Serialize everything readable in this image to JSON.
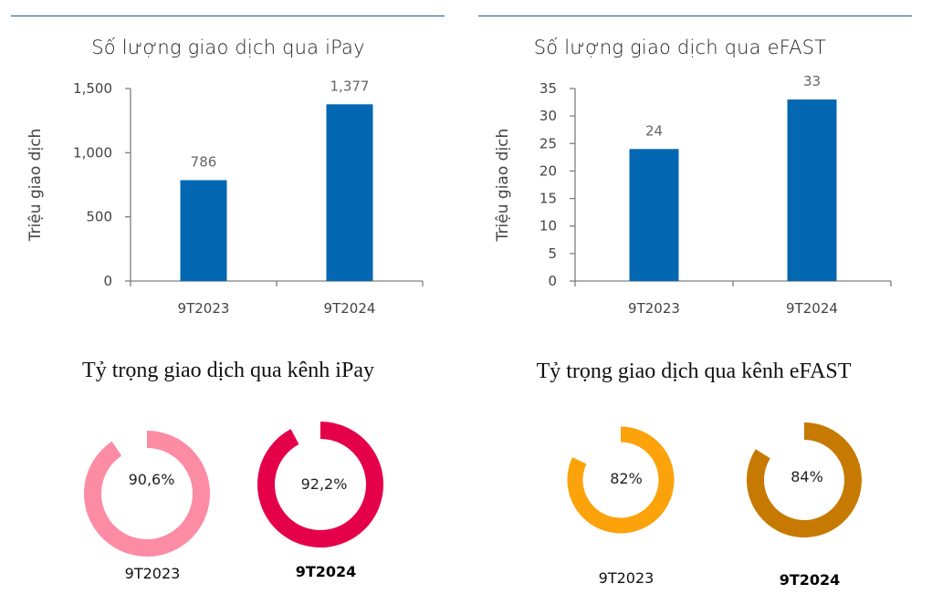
{
  "colors": {
    "rule": "#1f5a8e",
    "bar": "#0467b1",
    "axis": "#7f7f7f",
    "ipay_2023": "#fb8ca4",
    "ipay_2024": "#e5004a",
    "efast_2023": "#fca20a",
    "efast_2024": "#c67a02"
  },
  "chart_data": [
    {
      "type": "bar",
      "title": "Số lượng giao dịch qua iPay",
      "xlabel": "",
      "ylabel": "Triệu giao dịch",
      "categories": [
        "9T2023",
        "9T2024"
      ],
      "values": [
        786,
        1377
      ],
      "value_labels": [
        "786",
        "1,377"
      ],
      "ylim": [
        0,
        1500
      ],
      "yticks": [
        0,
        500,
        1000,
        1500
      ],
      "ytick_labels": [
        "0",
        "500",
        "1,000",
        "1,500"
      ],
      "grid": false
    },
    {
      "type": "bar",
      "title": "Số lượng giao dịch qua eFAST",
      "xlabel": "",
      "ylabel": "Triệu giao dịch",
      "categories": [
        "9T2023",
        "9T2024"
      ],
      "values": [
        24,
        33
      ],
      "value_labels": [
        "24",
        "33"
      ],
      "ylim": [
        0,
        35
      ],
      "yticks": [
        0,
        5,
        10,
        15,
        20,
        25,
        30,
        35
      ],
      "ytick_labels": [
        "0",
        "5",
        "10",
        "15",
        "20",
        "25",
        "30",
        "35"
      ],
      "grid": false
    },
    {
      "type": "pie",
      "title": "Tỷ trọng giao dịch qua kênh iPay",
      "categories": [
        "9T2023",
        "9T2024"
      ],
      "values": [
        90.6,
        92.2
      ],
      "value_labels": [
        "90,6%",
        "92,2%"
      ]
    },
    {
      "type": "pie",
      "title": "Tỷ trọng giao dịch qua kênh eFAST",
      "categories": [
        "9T2023",
        "9T2024"
      ],
      "values": [
        82,
        84
      ],
      "value_labels": [
        "82%",
        "84%"
      ]
    }
  ]
}
